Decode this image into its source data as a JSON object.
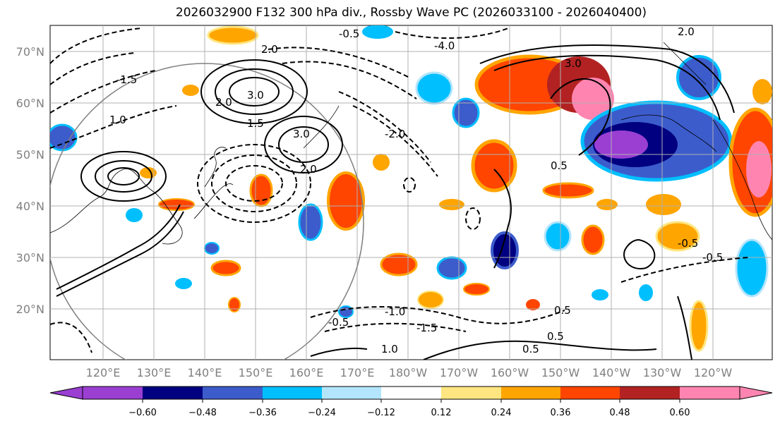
{
  "title": "2026032900 F132 300 hPa div., Rossby Wave PC (2026033100 - 2026040400)",
  "latitude_labels": [
    "70°N",
    "60°N",
    "50°N",
    "40°N",
    "30°N",
    "20°N"
  ],
  "longitude_labels": [
    "120°E",
    "130°E",
    "140°E",
    "150°E",
    "160°E",
    "170°E",
    "180°W",
    "170°W",
    "160°W",
    "150°W",
    "140°W",
    "130°W",
    "120°W"
  ],
  "colorbar": {
    "ticks": [
      "−0.60",
      "−0.48",
      "−0.36",
      "−0.24",
      "−0.12",
      "0.12",
      "0.24",
      "0.36",
      "0.48",
      "0.60"
    ],
    "colors": [
      "#9a3fd2",
      "#000080",
      "#3c5ccc",
      "#00bfff",
      "#b3e5fc",
      "#ffffff",
      "#ffe680",
      "#ffa500",
      "#ff4500",
      "#b22222",
      "#ff85b0"
    ]
  },
  "contour_labels": {
    "a": "3.0",
    "b": "2.0",
    "c": "1.0",
    "d": "-0.5",
    "e": "0.5",
    "f": "-1.0",
    "g": "-1.5",
    "h": "1.5",
    "i": "-2.0",
    "j": "-4.0"
  }
}
